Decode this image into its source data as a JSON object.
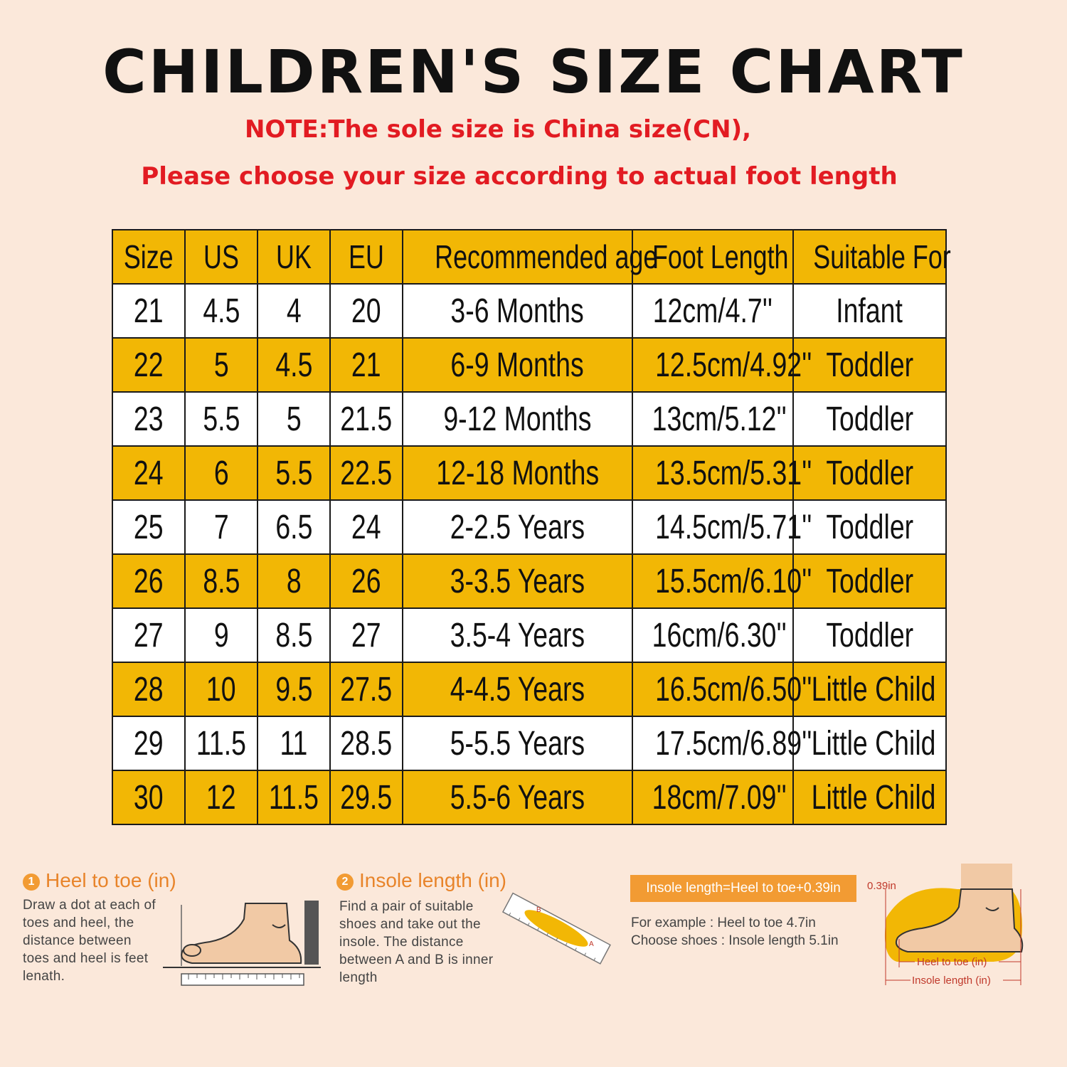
{
  "title": "CHILDREN'S SIZE CHART",
  "note_line1": "NOTE:The sole size is China size(CN),",
  "note_line2": "Please choose your size according to actual foot length",
  "table": {
    "headers": [
      "Size",
      "US",
      "UK",
      "EU",
      "Recommended age",
      "Foot Length",
      "Suitable For"
    ],
    "rows": [
      [
        "21",
        "4.5",
        "4",
        "20",
        "3-6 Months",
        "12cm/4.7''",
        "Infant"
      ],
      [
        "22",
        "5",
        "4.5",
        "21",
        "6-9 Months",
        "12.5cm/4.92''",
        "Toddler"
      ],
      [
        "23",
        "5.5",
        "5",
        "21.5",
        "9-12 Months",
        "13cm/5.12''",
        "Toddler"
      ],
      [
        "24",
        "6",
        "5.5",
        "22.5",
        "12-18 Months",
        "13.5cm/5.31''",
        "Toddler"
      ],
      [
        "25",
        "7",
        "6.5",
        "24",
        "2-2.5 Years",
        "14.5cm/5.71''",
        "Toddler"
      ],
      [
        "26",
        "8.5",
        "8",
        "26",
        "3-3.5 Years",
        "15.5cm/6.10''",
        "Toddler"
      ],
      [
        "27",
        "9",
        "8.5",
        "27",
        "3.5-4 Years",
        "16cm/6.30''",
        "Toddler"
      ],
      [
        "28",
        "10",
        "9.5",
        "27.5",
        "4-4.5 Years",
        "16.5cm/6.50''",
        "Little Child"
      ],
      [
        "29",
        "11.5",
        "11",
        "28.5",
        "5-5.5 Years",
        "17.5cm/6.89''",
        "Little Child"
      ],
      [
        "30",
        "12",
        "11.5",
        "29.5",
        "5.5-6 Years",
        "18cm/7.09''",
        "Little Child"
      ]
    ]
  },
  "step1": {
    "number": "1",
    "title": "Heel to toe (in)",
    "text": [
      "Draw a dot at each of",
      "toes and heel, the",
      "distance between",
      "toes and heel is feet",
      "lenath."
    ]
  },
  "step2": {
    "number": "2",
    "title": "Insole length (in)",
    "text": [
      "Find a pair of suitable",
      "shoes and take out the",
      "insole. The distance",
      "between A and B is inner",
      "length"
    ],
    "marker_a": "A",
    "marker_b": "B"
  },
  "formula": "Insole length=Heel to toe+0.39in",
  "example_line1": "For example : Heel to toe  4.7in",
  "example_line2": "Choose shoes : Insole length 5.1in",
  "diagram": {
    "gap_label": "0.39in",
    "heel_to_toe_label": "Heel to toe (in)",
    "insole_label": "Insole length (in)"
  },
  "colors": {
    "background": "#fbe8da",
    "header_yellow": "#f2b705",
    "note_red": "#e21b22",
    "accent_orange": "#f29b33"
  }
}
